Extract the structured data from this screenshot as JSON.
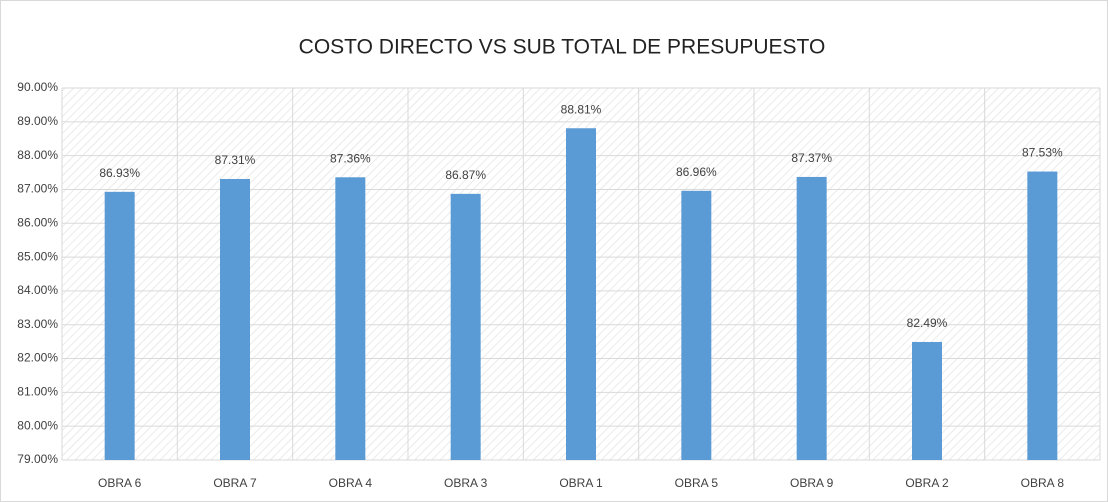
{
  "chart_data": {
    "type": "bar",
    "title": "COSTO DIRECTO VS SUB TOTAL DE PRESUPUESTO",
    "categories": [
      "OBRA 6",
      "OBRA 7",
      "OBRA 4",
      "OBRA 3",
      "OBRA 1",
      "OBRA 5",
      "OBRA 9",
      "OBRA 2",
      "OBRA 8"
    ],
    "values": [
      86.93,
      87.31,
      87.36,
      86.87,
      88.81,
      86.96,
      87.37,
      82.49,
      87.53
    ],
    "value_labels": [
      "86.93%",
      "87.31%",
      "87.36%",
      "86.87%",
      "88.81%",
      "86.96%",
      "87.37%",
      "82.49%",
      "87.53%"
    ],
    "color": "#5b9bd5",
    "ylim": [
      79,
      90
    ],
    "yticks": [
      {
        "value": 79,
        "label": "79.00%"
      },
      {
        "value": 80,
        "label": "80.00%"
      },
      {
        "value": 81,
        "label": "81.00%"
      },
      {
        "value": 82,
        "label": "82.00%"
      },
      {
        "value": 83,
        "label": "83.00%"
      },
      {
        "value": 84,
        "label": "84.00%"
      },
      {
        "value": 85,
        "label": "85.00%"
      },
      {
        "value": 86,
        "label": "86.00%"
      },
      {
        "value": 87,
        "label": "87.00%"
      },
      {
        "value": 88,
        "label": "88.00%"
      },
      {
        "value": 89,
        "label": "89.00%"
      },
      {
        "value": 90,
        "label": "90.00%"
      }
    ],
    "grid": true
  }
}
